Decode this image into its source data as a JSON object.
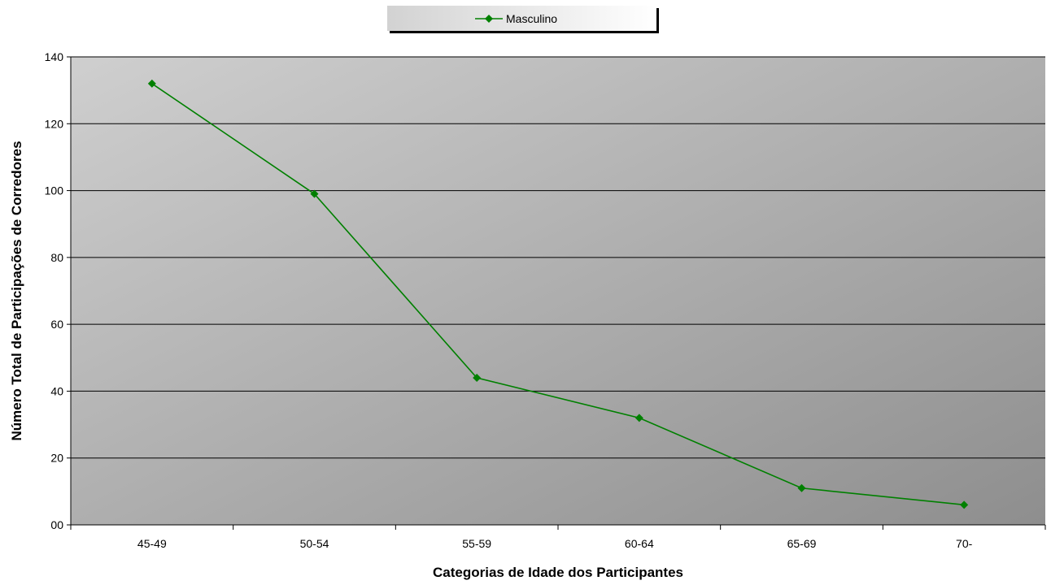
{
  "chart_data": {
    "type": "line",
    "title": "",
    "xlabel": "Categorias de Idade dos Participantes",
    "ylabel": "Número Total de Participações de Corredores",
    "categories": [
      "45-49",
      "50-54",
      "55-59",
      "60-64",
      "65-69",
      "70-"
    ],
    "series": [
      {
        "name": "Masculino",
        "values": [
          132,
          99,
          44,
          32,
          11,
          6
        ],
        "color": "#008000",
        "marker": "diamond"
      }
    ],
    "ylim": [
      0,
      140
    ],
    "yticks": [
      0,
      20,
      40,
      60,
      80,
      100,
      120,
      140
    ],
    "ytick_labels": [
      "00",
      "20",
      "40",
      "60",
      "80",
      "100",
      "120",
      "140"
    ],
    "grid": true,
    "legend_position": "top-center",
    "plot_background": "gradient-gray"
  }
}
